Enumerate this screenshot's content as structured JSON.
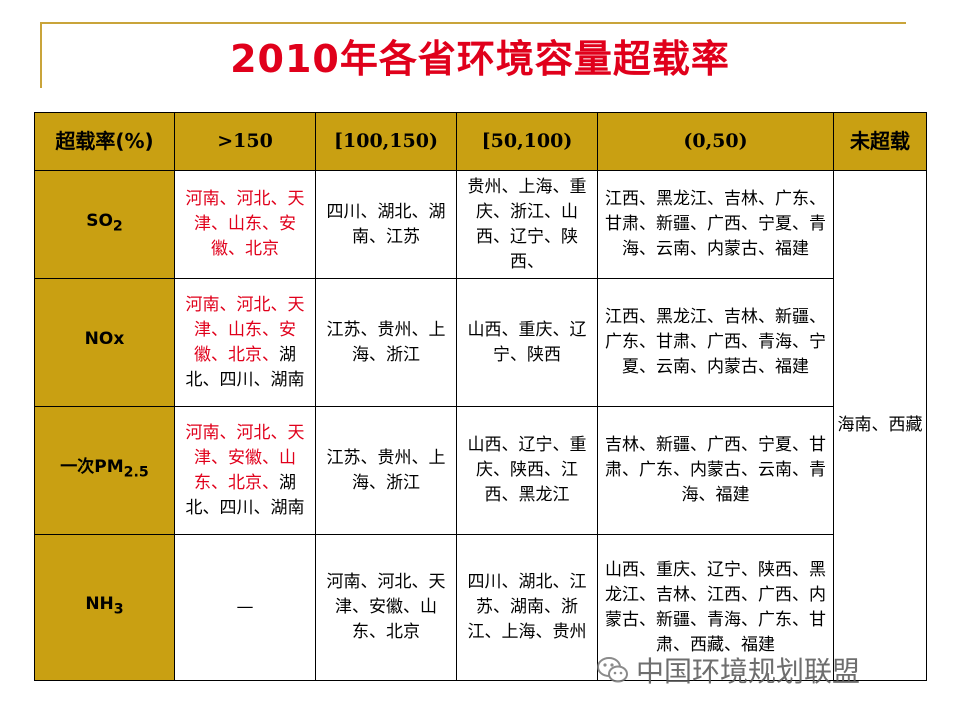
{
  "title": "2010年各省环境容量超载率",
  "table": {
    "headers": [
      "超载率(%)",
      ">150",
      "[100,150)",
      "[50,100)",
      "(0,50)",
      "未超载"
    ],
    "rows": [
      {
        "pollutant": "SO",
        "pollutant_sub": "2",
        "gt150_red": "河南、河北、天津、山东、安徽、北京",
        "gt150_black": "",
        "r100_150": "四川、湖北、湖南、江苏",
        "r50_100": "贵州、上海、重庆、浙江、山西、辽宁、陕西、",
        "r0_50": "江西、黑龙江、吉林、广东、甘肃、新疆、广西、宁夏、青海、云南、内蒙古、福建"
      },
      {
        "pollutant": "NOx",
        "pollutant_sub": "",
        "gt150_red": "河南、河北、天津、山东、安徽、北京、",
        "gt150_black": "湖北、四川、湖南",
        "r100_150": "江苏、贵州、上海、浙江",
        "r50_100": "山西、重庆、辽宁、陕西",
        "r0_50": "江西、黑龙江、吉林、新疆、广东、甘肃、广西、青海、宁夏、云南、内蒙古、福建"
      },
      {
        "pollutant": "一次PM",
        "pollutant_sub": "2.5",
        "gt150_red": "河南、河北、天津、安徽、山东、北京、",
        "gt150_black": "湖北、四川、湖南",
        "r100_150": "江苏、贵州、上海、浙江",
        "r50_100": "山西、辽宁、重庆、陕西、江西、黑龙江",
        "r0_50": "吉林、新疆、广西、宁夏、甘肃、广东、内蒙古、云南、青海、福建"
      },
      {
        "pollutant": "NH",
        "pollutant_sub": "3",
        "gt150_red": "",
        "gt150_black": "—",
        "r100_150": "河南、河北、天津、安徽、山东、北京",
        "r50_100": "四川、湖北、江苏、湖南、浙江、上海、贵州",
        "r0_50": "山西、重庆、辽宁、陕西、黑龙江、吉林、江西、广西、内蒙古、新疆、青海、广东、甘肃、西藏、福建"
      }
    ],
    "not_exceeded": "海南、西藏"
  },
  "watermark": {
    "text": "中国环境规划联盟",
    "icon": "wechat-icon"
  }
}
